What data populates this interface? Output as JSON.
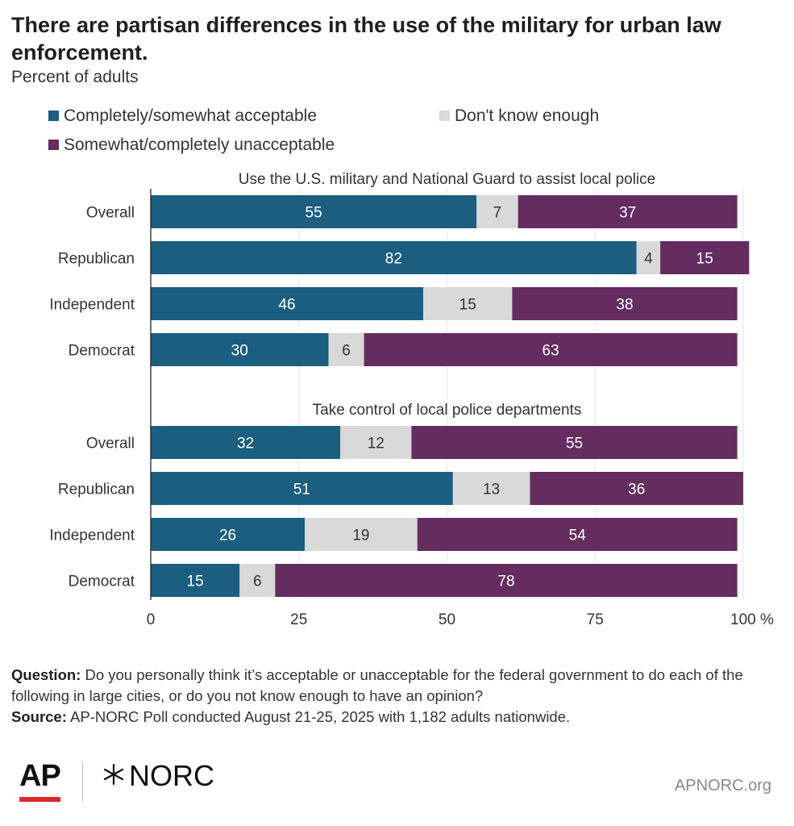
{
  "title": "There are partisan differences in the use of the military for urban law enforcement.",
  "subtitle": "Percent of adults",
  "legend": [
    {
      "label": "Completely/somewhat acceptable",
      "color": "#1b5e7f"
    },
    {
      "label": "Don't know enough",
      "color": "#d9d9d9"
    },
    {
      "label": "Somewhat/completely unacceptable",
      "color": "#652c60"
    }
  ],
  "chart_data": {
    "type": "bar",
    "orientation": "horizontal",
    "stacked": true,
    "xlim": [
      0,
      100
    ],
    "x_ticks": [
      "0",
      "25",
      "50",
      "75",
      "100 %"
    ],
    "groups": [
      {
        "title": "Use the U.S. military and National Guard to assist local police",
        "categories": [
          "Overall",
          "Republican",
          "Independent",
          "Democrat"
        ],
        "series": [
          {
            "name": "Completely/somewhat acceptable",
            "values": [
              55,
              82,
              46,
              30
            ]
          },
          {
            "name": "Don't know enough",
            "values": [
              7,
              4,
              15,
              6
            ]
          },
          {
            "name": "Somewhat/completely unacceptable",
            "values": [
              37,
              15,
              38,
              63
            ]
          }
        ]
      },
      {
        "title": "Take control of local police departments",
        "categories": [
          "Overall",
          "Republican",
          "Independent",
          "Democrat"
        ],
        "series": [
          {
            "name": "Completely/somewhat acceptable",
            "values": [
              32,
              51,
              26,
              15
            ]
          },
          {
            "name": "Don't know enough",
            "values": [
              12,
              13,
              19,
              6
            ]
          },
          {
            "name": "Somewhat/completely unacceptable",
            "values": [
              55,
              36,
              54,
              78
            ]
          }
        ]
      }
    ]
  },
  "notes": {
    "question_label": "Question:",
    "question_text": "Do you personally think it’s acceptable or unacceptable for the federal government to do each of the following in large cities, or do you not know enough to have an opinion?",
    "source_label": "Source:",
    "source_text": "AP-NORC Poll conducted August 21-25, 2025 with 1,182 adults nationwide."
  },
  "logos": {
    "ap": "AP",
    "norc": "NORC"
  },
  "site": "APNORC.org"
}
